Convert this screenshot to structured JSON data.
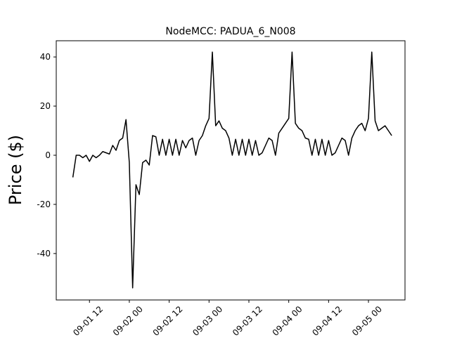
{
  "chart_data": {
    "type": "line",
    "title": "NodeMCC: PADUA_6_N008",
    "y_label": "Price ($)",
    "x": [
      "09-01 07",
      "09-01 08",
      "09-01 09",
      "09-01 10",
      "09-01 11",
      "09-01 12",
      "09-01 13",
      "09-01 14",
      "09-01 15",
      "09-01 16",
      "09-01 17",
      "09-01 18",
      "09-01 19",
      "09-01 20",
      "09-01 21",
      "09-01 22",
      "09-01 23",
      "09-02 00",
      "09-02 01",
      "09-02 02",
      "09-02 03",
      "09-02 04",
      "09-02 05",
      "09-02 06",
      "09-02 07",
      "09-02 08",
      "09-02 09",
      "09-02 10",
      "09-02 11",
      "09-02 12",
      "09-02 13",
      "09-02 14",
      "09-02 15",
      "09-02 16",
      "09-02 17",
      "09-02 18",
      "09-02 19",
      "09-02 20",
      "09-02 21",
      "09-02 22",
      "09-02 23",
      "09-03 00",
      "09-03 01",
      "09-03 02",
      "09-03 03",
      "09-03 04",
      "09-03 05",
      "09-03 06",
      "09-03 07",
      "09-03 08",
      "09-03 09",
      "09-03 10",
      "09-03 11",
      "09-03 12",
      "09-03 13",
      "09-03 14",
      "09-03 15",
      "09-03 16",
      "09-03 17",
      "09-03 18",
      "09-03 19",
      "09-03 20",
      "09-03 21",
      "09-03 22",
      "09-03 23",
      "09-04 00",
      "09-04 01",
      "09-04 02",
      "09-04 03",
      "09-04 04",
      "09-04 05",
      "09-04 06",
      "09-04 07",
      "09-04 08",
      "09-04 09",
      "09-04 10",
      "09-04 11",
      "09-04 12",
      "09-04 13",
      "09-04 14",
      "09-04 15",
      "09-04 16",
      "09-04 17",
      "09-04 18",
      "09-04 19",
      "09-04 20",
      "09-04 21",
      "09-04 22",
      "09-04 23",
      "09-05 00",
      "09-05 01",
      "09-05 02",
      "09-05 03",
      "09-05 04",
      "09-05 05",
      "09-05 06",
      "09-05 07"
    ],
    "series": [
      {
        "name": "PADUA_6_N008",
        "color": "#000000",
        "values": [
          -9,
          0,
          0,
          -1,
          0,
          -2.5,
          0,
          -1,
          0,
          1.5,
          1,
          0.5,
          4,
          2,
          6,
          7,
          14.5,
          -3,
          -54,
          -12,
          -16,
          -3,
          -2,
          -4,
          8,
          7.5,
          0,
          6.5,
          0,
          6.5,
          0,
          6.5,
          0,
          6,
          3,
          6,
          7,
          0,
          6,
          8,
          12,
          15,
          42,
          12,
          14,
          11,
          10,
          7,
          0,
          6.5,
          0,
          6.5,
          0,
          6.5,
          0,
          6,
          0,
          1,
          4,
          7,
          6,
          0,
          9,
          11,
          13,
          15,
          42,
          13,
          11,
          10,
          7,
          6.5,
          0,
          6.5,
          0,
          6.5,
          0,
          6,
          0,
          1,
          4,
          7,
          6,
          0,
          7,
          10,
          12,
          13,
          10,
          15,
          42,
          14,
          10,
          11,
          12,
          10,
          8
        ]
      }
    ],
    "xlim": [
      "09-01 02",
      "09-05 11"
    ],
    "xticks": [
      "09-01 12",
      "09-02 00",
      "09-02 12",
      "09-03 00",
      "09-03 12",
      "09-04 00",
      "09-04 12",
      "09-05 00"
    ],
    "ylim": [
      -58.9,
      46.6
    ],
    "yticks": [
      -40,
      -20,
      0,
      20,
      40
    ]
  }
}
